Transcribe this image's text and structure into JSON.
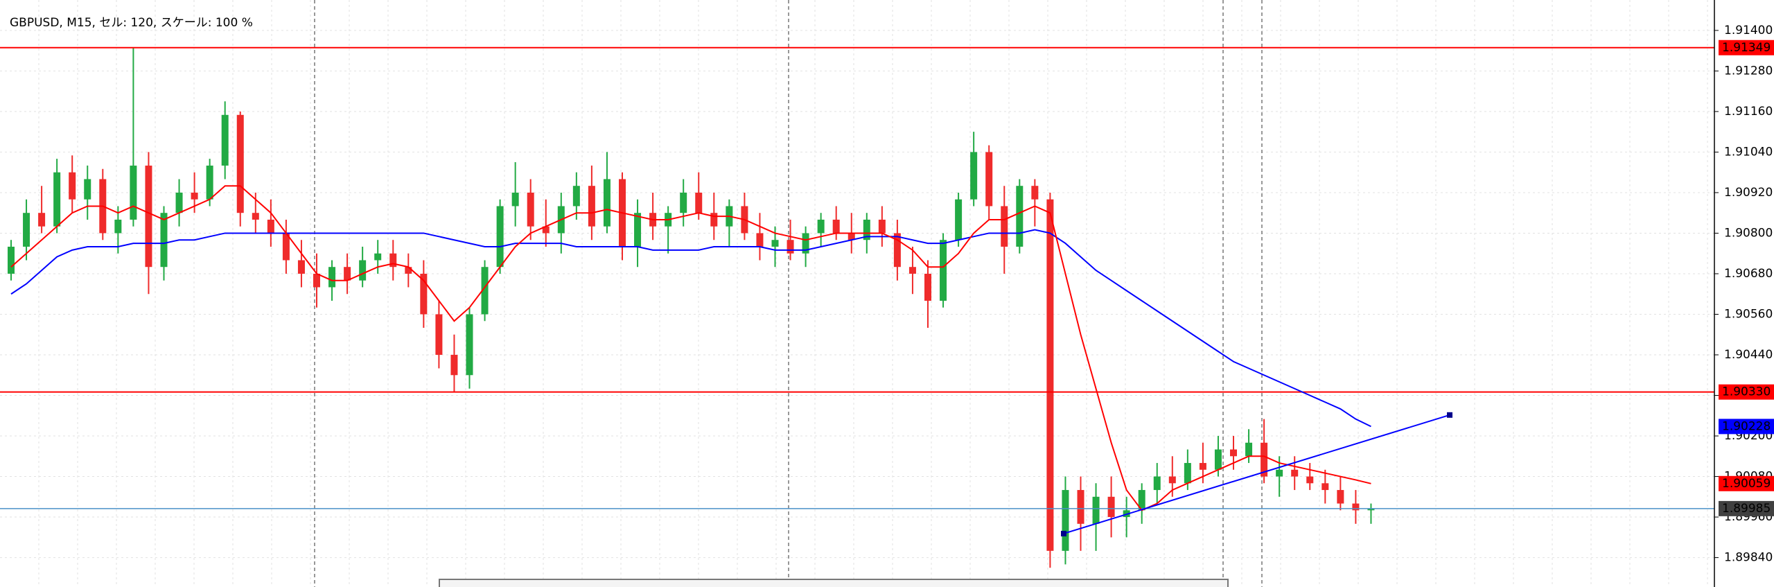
{
  "chart_data": {
    "type": "candlestick",
    "title": "GBPUSD, M15, セル: 120, スケール: 100 %",
    "up_color": "#22aa44",
    "down_color": "#ef2b2b",
    "ylim": [
      1.89753,
      1.9149
    ],
    "yticks": [
      {
        "value": 1.914,
        "label": "1.91400"
      },
      {
        "value": 1.9128,
        "label": "1.91280"
      },
      {
        "value": 1.9116,
        "label": "1.91160"
      },
      {
        "value": 1.9104,
        "label": "1.91040"
      },
      {
        "value": 1.9092,
        "label": "1.90920"
      },
      {
        "value": 1.908,
        "label": "1.90800"
      },
      {
        "value": 1.9068,
        "label": "1.90680"
      },
      {
        "value": 1.9056,
        "label": "1.90560"
      },
      {
        "value": 1.9044,
        "label": "1.90440"
      },
      {
        "value": 1.9032,
        "label": "1.90320"
      },
      {
        "value": 1.902,
        "label": "1.90200"
      },
      {
        "value": 1.9008,
        "label": "1.90080"
      },
      {
        "value": 1.8996,
        "label": "1.89960"
      },
      {
        "value": 1.8984,
        "label": "1.89840"
      }
    ],
    "grid": true,
    "ohlc": [
      [
        1.9068,
        1.9078,
        1.9066,
        1.9076
      ],
      [
        1.9076,
        1.909,
        1.9072,
        1.9086
      ],
      [
        1.9086,
        1.9094,
        1.908,
        1.9082
      ],
      [
        1.9082,
        1.9102,
        1.908,
        1.9098
      ],
      [
        1.9098,
        1.9103,
        1.9086,
        1.909
      ],
      [
        1.909,
        1.91,
        1.9084,
        1.9096
      ],
      [
        1.9096,
        1.9099,
        1.9078,
        1.908
      ],
      [
        1.908,
        1.9088,
        1.9074,
        1.9084
      ],
      [
        1.9084,
        1.9135,
        1.9082,
        1.91
      ],
      [
        1.91,
        1.9104,
        1.9062,
        1.907
      ],
      [
        1.907,
        1.9088,
        1.9066,
        1.9086
      ],
      [
        1.9086,
        1.9096,
        1.9082,
        1.9092
      ],
      [
        1.9092,
        1.9098,
        1.9086,
        1.909
      ],
      [
        1.909,
        1.9102,
        1.9088,
        1.91
      ],
      [
        1.91,
        1.9119,
        1.9096,
        1.9115
      ],
      [
        1.9115,
        1.9116,
        1.9082,
        1.9086
      ],
      [
        1.9086,
        1.9092,
        1.908,
        1.9084
      ],
      [
        1.9084,
        1.909,
        1.9076,
        1.908
      ],
      [
        1.908,
        1.9084,
        1.9068,
        1.9072
      ],
      [
        1.9072,
        1.9078,
        1.9064,
        1.9068
      ],
      [
        1.9068,
        1.9074,
        1.9058,
        1.9064
      ],
      [
        1.9064,
        1.9072,
        1.906,
        1.907
      ],
      [
        1.907,
        1.9074,
        1.9062,
        1.9066
      ],
      [
        1.9066,
        1.9076,
        1.9064,
        1.9072
      ],
      [
        1.9072,
        1.9078,
        1.9068,
        1.9074
      ],
      [
        1.9074,
        1.9078,
        1.9066,
        1.907
      ],
      [
        1.907,
        1.9074,
        1.9064,
        1.9068
      ],
      [
        1.9068,
        1.9072,
        1.9052,
        1.9056
      ],
      [
        1.9056,
        1.906,
        1.904,
        1.9044
      ],
      [
        1.9044,
        1.905,
        1.9033,
        1.9038
      ],
      [
        1.9038,
        1.9058,
        1.9034,
        1.9056
      ],
      [
        1.9056,
        1.9072,
        1.9054,
        1.907
      ],
      [
        1.907,
        1.909,
        1.9068,
        1.9088
      ],
      [
        1.9088,
        1.9101,
        1.9082,
        1.9092
      ],
      [
        1.9092,
        1.9096,
        1.9078,
        1.9082
      ],
      [
        1.9082,
        1.909,
        1.9076,
        1.908
      ],
      [
        1.908,
        1.9092,
        1.9074,
        1.9088
      ],
      [
        1.9088,
        1.9098,
        1.9084,
        1.9094
      ],
      [
        1.9094,
        1.91,
        1.9078,
        1.9082
      ],
      [
        1.9082,
        1.9104,
        1.908,
        1.9096
      ],
      [
        1.9096,
        1.9098,
        1.9072,
        1.9076
      ],
      [
        1.9076,
        1.909,
        1.907,
        1.9086
      ],
      [
        1.9086,
        1.9092,
        1.9078,
        1.9082
      ],
      [
        1.9082,
        1.9088,
        1.9074,
        1.9086
      ],
      [
        1.9086,
        1.9096,
        1.9082,
        1.9092
      ],
      [
        1.9092,
        1.9098,
        1.9084,
        1.9086
      ],
      [
        1.9086,
        1.9092,
        1.9078,
        1.9082
      ],
      [
        1.9082,
        1.909,
        1.9076,
        1.9088
      ],
      [
        1.9088,
        1.9092,
        1.9078,
        1.908
      ],
      [
        1.908,
        1.9086,
        1.9072,
        1.9076
      ],
      [
        1.9076,
        1.9082,
        1.907,
        1.9078
      ],
      [
        1.9078,
        1.9084,
        1.9072,
        1.9074
      ],
      [
        1.9074,
        1.9082,
        1.907,
        1.908
      ],
      [
        1.908,
        1.9086,
        1.9076,
        1.9084
      ],
      [
        1.9084,
        1.9088,
        1.9078,
        1.908
      ],
      [
        1.908,
        1.9086,
        1.9074,
        1.9078
      ],
      [
        1.9078,
        1.9086,
        1.9074,
        1.9084
      ],
      [
        1.9084,
        1.9088,
        1.9076,
        1.908
      ],
      [
        1.908,
        1.9084,
        1.9066,
        1.907
      ],
      [
        1.907,
        1.9076,
        1.9062,
        1.9068
      ],
      [
        1.9068,
        1.9072,
        1.9052,
        1.906
      ],
      [
        1.906,
        1.908,
        1.9058,
        1.9078
      ],
      [
        1.9078,
        1.9092,
        1.9076,
        1.909
      ],
      [
        1.909,
        1.911,
        1.9088,
        1.9104
      ],
      [
        1.9104,
        1.9106,
        1.9084,
        1.9088
      ],
      [
        1.9088,
        1.9094,
        1.9068,
        1.9076
      ],
      [
        1.9076,
        1.9096,
        1.9074,
        1.9094
      ],
      [
        1.9094,
        1.9096,
        1.9082,
        1.909
      ],
      [
        1.909,
        1.9092,
        1.8981,
        1.8986
      ],
      [
        1.8986,
        1.9008,
        1.8982,
        1.9004
      ],
      [
        1.9004,
        1.9008,
        1.8986,
        1.8994
      ],
      [
        1.8994,
        1.9006,
        1.8986,
        1.9002
      ],
      [
        1.9002,
        1.9008,
        1.899,
        1.8996
      ],
      [
        1.8996,
        1.9002,
        1.899,
        1.8998
      ],
      [
        1.8998,
        1.9006,
        1.8994,
        1.9004
      ],
      [
        1.9004,
        1.9012,
        1.9,
        1.9008
      ],
      [
        1.9008,
        1.9014,
        1.9002,
        1.9006
      ],
      [
        1.9006,
        1.9016,
        1.9004,
        1.9012
      ],
      [
        1.9012,
        1.9018,
        1.9006,
        1.901
      ],
      [
        1.901,
        1.902,
        1.9008,
        1.9016
      ],
      [
        1.9016,
        1.902,
        1.901,
        1.9014
      ],
      [
        1.9014,
        1.9022,
        1.9012,
        1.9018
      ],
      [
        1.9018,
        1.9025,
        1.9006,
        1.9008
      ],
      [
        1.9008,
        1.9014,
        1.9002,
        1.901
      ],
      [
        1.901,
        1.9014,
        1.9004,
        1.9008
      ],
      [
        1.9008,
        1.9012,
        1.9004,
        1.9006
      ],
      [
        1.9006,
        1.901,
        1.9,
        1.9004
      ],
      [
        1.9004,
        1.9008,
        1.8998,
        1.9
      ],
      [
        1.9,
        1.9004,
        1.8994,
        1.8998
      ],
      [
        1.8998,
        1.9,
        1.8994,
        1.89985
      ]
    ],
    "series": [
      {
        "color": "#0000ff",
        "values": [
          1.9062,
          1.9065,
          1.9069,
          1.9073,
          1.9075,
          1.9076,
          1.9076,
          1.9076,
          1.9077,
          1.9077,
          1.9077,
          1.9078,
          1.9078,
          1.9079,
          1.908,
          1.908,
          1.908,
          1.908,
          1.908,
          1.908,
          1.908,
          1.908,
          1.908,
          1.908,
          1.908,
          1.908,
          1.908,
          1.908,
          1.9079,
          1.9078,
          1.9077,
          1.9076,
          1.9076,
          1.9077,
          1.9077,
          1.9077,
          1.9077,
          1.9076,
          1.9076,
          1.9076,
          1.9076,
          1.9076,
          1.9075,
          1.9075,
          1.9075,
          1.9075,
          1.9076,
          1.9076,
          1.9076,
          1.9076,
          1.9075,
          1.9075,
          1.9075,
          1.9076,
          1.9077,
          1.9078,
          1.9079,
          1.9079,
          1.9079,
          1.9078,
          1.9077,
          1.9077,
          1.9078,
          1.9079,
          1.908,
          1.908,
          1.908,
          1.9081,
          1.908,
          1.9077,
          1.9073,
          1.9069,
          1.9066,
          1.9063,
          1.906,
          1.9057,
          1.9054,
          1.9051,
          1.9048,
          1.9045,
          1.9042,
          1.904,
          1.9038,
          1.9036,
          1.9034,
          1.9032,
          1.903,
          1.9028,
          1.9025,
          1.90228
        ]
      },
      {
        "color": "#ff0000",
        "values": [
          1.907,
          1.9074,
          1.9078,
          1.9082,
          1.9086,
          1.9088,
          1.9088,
          1.9086,
          1.9088,
          1.9086,
          1.9084,
          1.9086,
          1.9088,
          1.909,
          1.9094,
          1.9094,
          1.909,
          1.9086,
          1.908,
          1.9074,
          1.9068,
          1.9066,
          1.9066,
          1.9068,
          1.907,
          1.9071,
          1.907,
          1.9066,
          1.906,
          1.9054,
          1.9058,
          1.9064,
          1.907,
          1.9076,
          1.908,
          1.9082,
          1.9084,
          1.9086,
          1.9086,
          1.9087,
          1.9086,
          1.9085,
          1.9084,
          1.9084,
          1.9085,
          1.9086,
          1.9085,
          1.9085,
          1.9084,
          1.9082,
          1.908,
          1.9079,
          1.9078,
          1.9079,
          1.908,
          1.908,
          1.908,
          1.908,
          1.9078,
          1.9075,
          1.907,
          1.907,
          1.9074,
          1.908,
          1.9084,
          1.9084,
          1.9086,
          1.9088,
          1.9086,
          1.9068,
          1.905,
          1.9034,
          1.9018,
          1.9004,
          1.8998,
          1.9,
          1.9004,
          1.9006,
          1.9008,
          1.901,
          1.9012,
          1.9014,
          1.9014,
          1.9012,
          1.9011,
          1.901,
          1.9009,
          1.9008,
          1.9007,
          1.90059
        ]
      }
    ],
    "levels": [
      {
        "value": 1.91349,
        "color": "#ff0000"
      },
      {
        "value": 1.9033,
        "value_label": "1.90330",
        "color": "#ff0000"
      }
    ],
    "bid": {
      "value": 1.89985,
      "color": "#4a90c8",
      "label_color": "#404040"
    },
    "trendline": {
      "start": 1.89911,
      "end": 1.90262,
      "color": "#0000ff"
    }
  }
}
